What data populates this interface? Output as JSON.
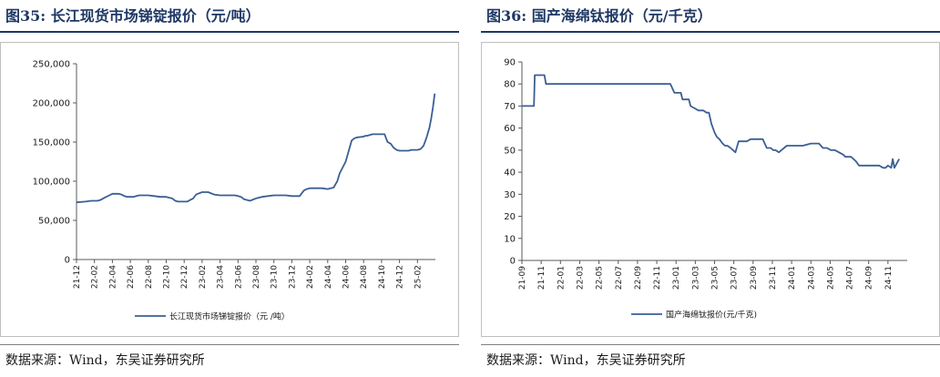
{
  "left": {
    "title": "图35:  长江现货市场锑锭报价（元/吨）",
    "source": "数据来源：Wind，东吴证券研究所",
    "chart_data": {
      "type": "line",
      "x_ticks": [
        "21-12",
        "22-02",
        "22-04",
        "22-06",
        "22-08",
        "22-10",
        "22-12",
        "23-02",
        "23-04",
        "23-06",
        "23-08",
        "23-10",
        "23-12",
        "24-02",
        "24-04",
        "24-06",
        "24-08",
        "24-10",
        "24-12",
        "25-02"
      ],
      "y_ticks": [
        "0",
        "50,000",
        "100,000",
        "150,000",
        "200,000",
        "250,000"
      ],
      "ylim": [
        0,
        250000
      ],
      "legend_position": "bottom",
      "color": "#3a5f94",
      "series": [
        {
          "name": "长江现货市场锑锭报价（元 /吨）",
          "x": [
            0,
            1.5,
            2.5,
            3.5,
            4,
            4.7,
            5.5,
            6,
            6.3,
            7,
            7.5,
            8,
            8.5,
            9.5,
            10,
            10.5,
            11,
            11.5,
            12,
            13,
            14,
            14.5,
            15,
            15.5,
            16,
            16.5,
            17,
            18,
            18.5,
            19,
            19.5,
            20,
            21,
            22,
            23,
            24,
            25,
            26,
            26.5,
            27,
            27.5,
            28,
            29,
            30,
            31,
            32,
            33,
            33.5,
            34,
            35,
            36,
            36.5,
            37,
            37.3,
            37.6,
            38,
            38.5,
            39,
            40,
            41,
            42,
            42.5,
            43,
            43.3,
            43.6,
            44,
            45,
            46,
            46.5,
            47,
            48,
            48.3,
            48.6,
            49,
            49.5,
            50,
            50.5,
            51,
            51.5,
            52,
            52.5,
            53,
            53.5,
            54,
            54.5,
            55,
            55.5,
            56,
            56.5,
            57,
            57.5,
            58,
            58.5,
            59,
            59.3,
            59.6,
            59.9
          ],
          "y": [
            73000,
            74000,
            75000,
            75000,
            76000,
            79000,
            82000,
            84000,
            84000,
            84000,
            83000,
            81000,
            80000,
            80000,
            81000,
            82000,
            82000,
            82000,
            82000,
            81000,
            80000,
            80000,
            80000,
            79000,
            78000,
            75000,
            74000,
            74000,
            74000,
            76000,
            78000,
            83000,
            86000,
            86000,
            83000,
            82000,
            82000,
            82000,
            82000,
            81000,
            80000,
            77000,
            75000,
            78000,
            80000,
            81000,
            82000,
            82000,
            82000,
            82000,
            81000,
            81000,
            81000,
            81000,
            84000,
            88000,
            90000,
            91000,
            91000,
            91000,
            90000,
            91000,
            92000,
            96000,
            100000,
            110000,
            125000,
            152000,
            155000,
            156000,
            157000,
            158000,
            158000,
            159000,
            160000,
            160000,
            160000,
            160000,
            160000,
            150000,
            148000,
            143000,
            140000,
            139000,
            139000,
            139000,
            139000,
            140000,
            140000,
            140000,
            141000,
            145000,
            155000,
            168000,
            180000,
            195000,
            212000
          ]
        }
      ]
    }
  },
  "right": {
    "title": "图36:  国产海绵钛报价（元/千克）",
    "source": "数据来源：Wind，东吴证券研究所",
    "chart_data": {
      "type": "line",
      "x_ticks": [
        "21-09",
        "21-11",
        "22-01",
        "22-03",
        "22-05",
        "22-07",
        "22-09",
        "22-11",
        "23-01",
        "23-03",
        "23-05",
        "23-07",
        "23-09",
        "23-11",
        "24-01",
        "24-03",
        "24-05",
        "24-07",
        "24-09",
        "24-11"
      ],
      "y_ticks": [
        "0",
        "10",
        "20",
        "30",
        "40",
        "50",
        "60",
        "70",
        "80",
        "90"
      ],
      "ylim": [
        0,
        90
      ],
      "legend_position": "bottom",
      "color": "#3a5f94",
      "series": [
        {
          "name": "国产海绵钛报价(元/千克)",
          "x": [
            0,
            1,
            1.5,
            1.6,
            2.8,
            3,
            3.5,
            10,
            17,
            18,
            18.5,
            19,
            19.8,
            20,
            20.8,
            21,
            21.5,
            22,
            22.3,
            22.6,
            23,
            23.3,
            23.6,
            24,
            24.3,
            24.6,
            25,
            25.3,
            25.6,
            26,
            26.3,
            26.6,
            27,
            28,
            28.5,
            29,
            29.5,
            30,
            30.5,
            31,
            31.3,
            31.6,
            32,
            33,
            34,
            35,
            36,
            36.5,
            37,
            37.5,
            38,
            38.5,
            39,
            39.5,
            40,
            40.3,
            40.6,
            41,
            41.3,
            41.6,
            42,
            43,
            44,
            44.5,
            45,
            45.3,
            45.6,
            46,
            46.2,
            46.4,
            47
          ],
          "y": [
            70,
            70,
            70,
            84,
            84,
            80,
            80,
            80,
            80,
            80,
            80,
            76,
            76,
            73,
            73,
            70,
            69,
            68,
            68,
            68,
            67,
            67,
            62,
            58,
            56,
            55,
            53,
            52,
            52,
            51,
            50,
            49,
            54,
            54,
            55,
            55,
            55,
            55,
            51,
            51,
            50,
            50,
            49,
            52,
            52,
            52,
            53,
            53,
            53,
            51,
            51,
            50,
            50,
            49,
            48,
            47,
            47,
            47,
            46,
            45,
            43,
            43,
            43,
            43,
            42,
            42,
            43,
            42,
            46,
            42,
            46
          ]
        }
      ]
    }
  }
}
